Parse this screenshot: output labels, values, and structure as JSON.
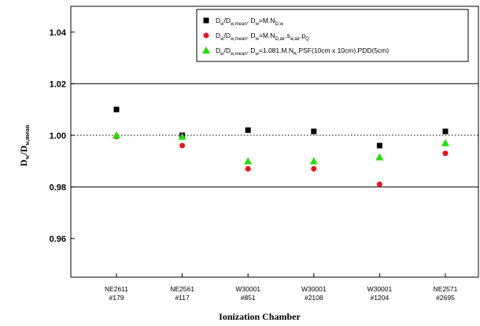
{
  "chart_data": {
    "type": "scatter",
    "xlabel": "Ionization Chamber",
    "ylabel": {
      "main": "D",
      "sub1": "w",
      "mid": "/D",
      "sub2": "w,mean"
    },
    "categories": [
      [
        "NE2611",
        "#179"
      ],
      [
        "NE2561",
        "#117"
      ],
      [
        "W30001",
        "#851"
      ],
      [
        "W30001",
        "#2108"
      ],
      [
        "W30001",
        "#1204"
      ],
      [
        "NE2571",
        "#2695"
      ]
    ],
    "ylim": [
      0.945,
      1.05
    ],
    "yticks": [
      "0.96",
      "0.98",
      "1.00",
      "1.02",
      "1.04"
    ],
    "reference_lines": [
      {
        "y": 1.02,
        "style": "solid"
      },
      {
        "y": 1.0,
        "style": "dotted"
      },
      {
        "y": 0.98,
        "style": "solid"
      }
    ],
    "series": [
      {
        "marker": "square",
        "color": "#000000",
        "values": [
          1.01,
          1.0,
          1.002,
          1.0015,
          0.996,
          1.0015
        ],
        "legend": [
          {
            "t": "D",
            "s": "w"
          },
          {
            "t": "/D",
            "s": "w,mean"
          },
          {
            "t": ",  D",
            "s": "w"
          },
          {
            "t": "=M.N",
            "s": "D,w"
          }
        ]
      },
      {
        "marker": "circle",
        "color": "#e8141c",
        "values": [
          0.9995,
          0.996,
          0.987,
          0.987,
          0.981,
          0.993
        ],
        "legend": [
          {
            "t": "D",
            "s": "w"
          },
          {
            "t": "/D",
            "s": "w,mean"
          },
          {
            "t": ",  D",
            "s": "w"
          },
          {
            "t": "=M.N",
            "s": "D,air"
          },
          {
            "t": ".s",
            "s": "w,air"
          },
          {
            "t": ".p",
            "s": "Q"
          }
        ]
      },
      {
        "marker": "triangle",
        "color": "#22e000",
        "values": [
          1.0,
          0.9995,
          0.99,
          0.99,
          0.9915,
          0.997
        ],
        "legend": [
          {
            "t": "D",
            "s": "w"
          },
          {
            "t": "/D",
            "s": "w,mean"
          },
          {
            "t": ",  D",
            "s": "w"
          },
          {
            "t": "=1.081.M.N",
            "s": "K"
          },
          {
            "t": ".PSF(10cm x 10cm).PDD(5cm)",
            "s": ""
          }
        ]
      }
    ]
  }
}
